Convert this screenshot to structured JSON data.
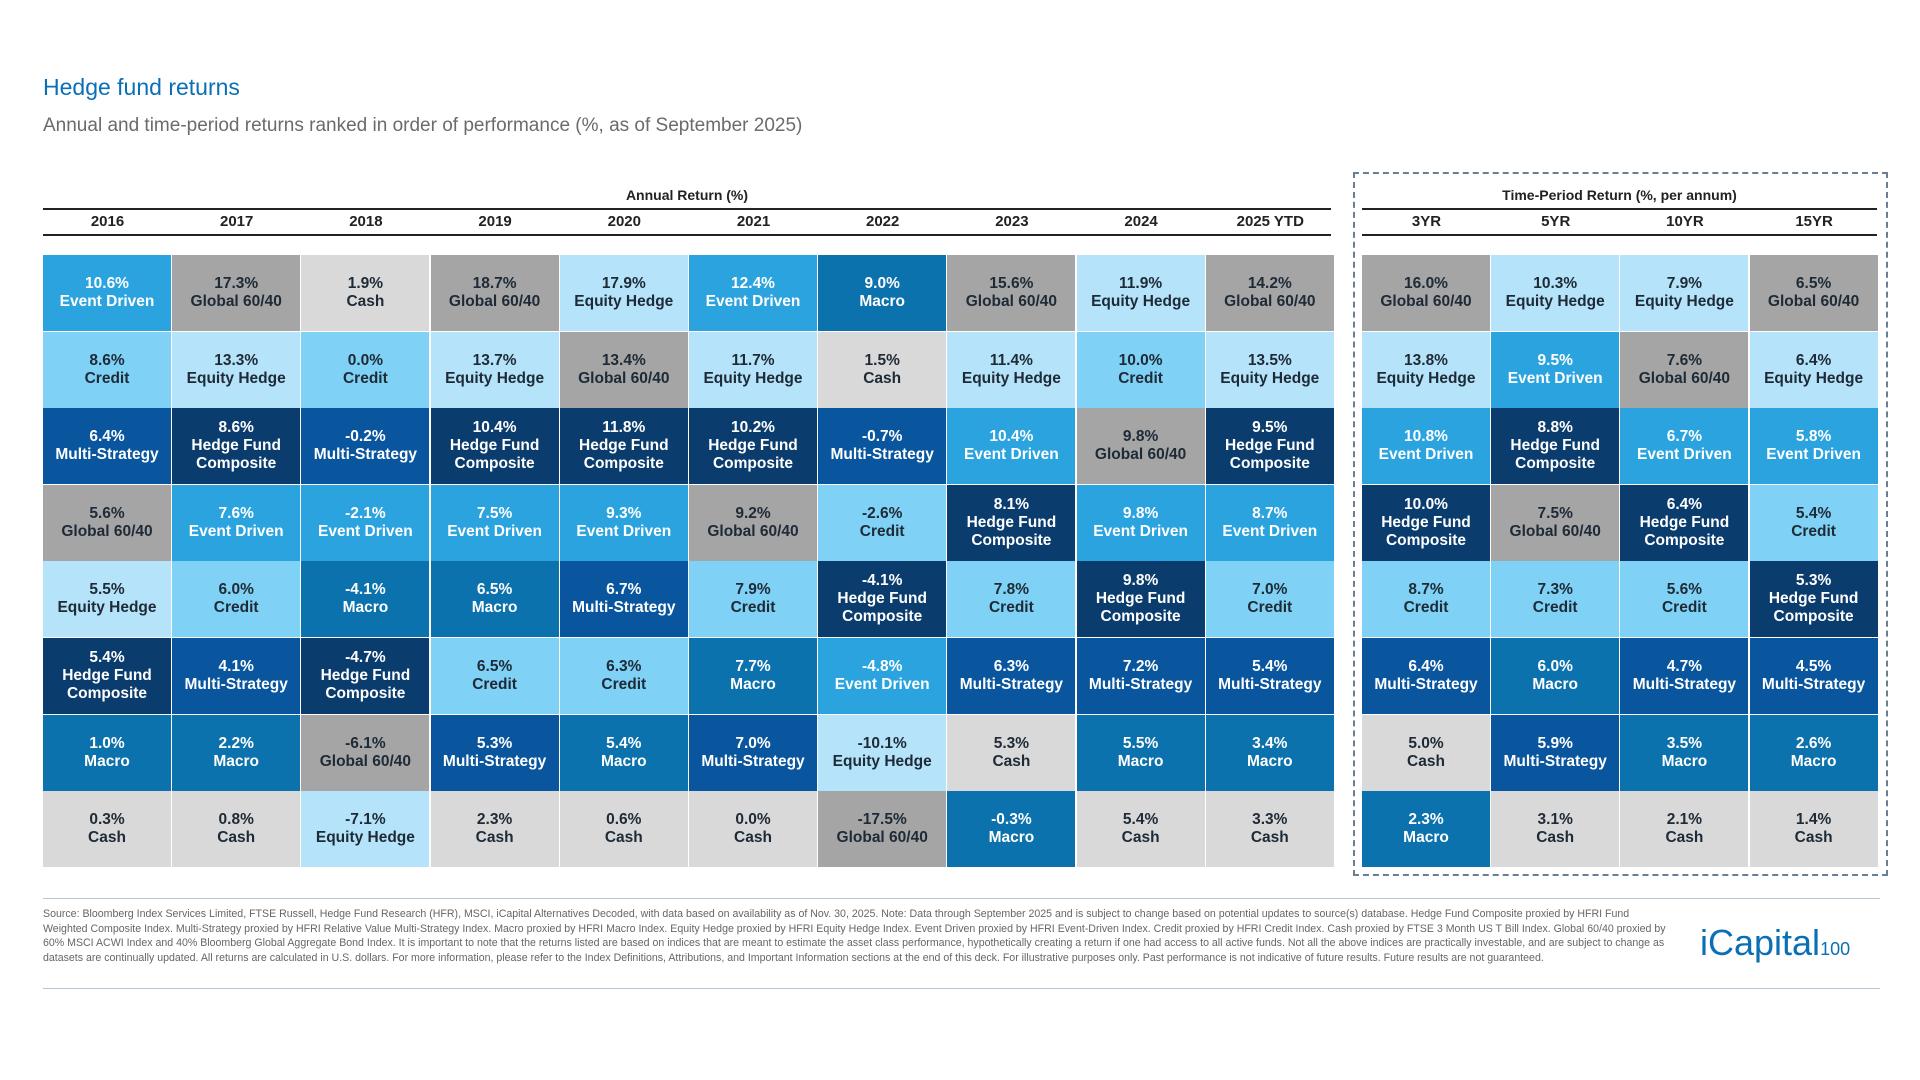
{
  "header": {
    "title": "Hedge fund returns",
    "subtitle": "Annual and time-period returns ranked in order of performance (%, as of September 2025)"
  },
  "colors": {
    "Event Driven": "#2aa3df",
    "Credit": "#7fd1f5",
    "Multi-Strategy": "#0a569e",
    "Global 60/40": "#a5a5a5",
    "Equity Hedge": "#b5e4fa",
    "Hedge Fund Composite": "#0b3c6e",
    "Macro": "#0b72ad",
    "Cash": "#d9d9d9"
  },
  "annual": {
    "title": "Annual Return (%)",
    "columns": [
      {
        "label": "2016",
        "cells": [
          [
            "10.6%",
            "Event Driven"
          ],
          [
            "8.6%",
            "Credit"
          ],
          [
            "6.4%",
            "Multi-Strategy"
          ],
          [
            "5.6%",
            "Global 60/40"
          ],
          [
            "5.5%",
            "Equity Hedge"
          ],
          [
            "5.4%",
            "Hedge Fund Composite"
          ],
          [
            "1.0%",
            "Macro"
          ],
          [
            "0.3%",
            "Cash"
          ]
        ]
      },
      {
        "label": "2017",
        "cells": [
          [
            "17.3%",
            "Global 60/40"
          ],
          [
            "13.3%",
            "Equity Hedge"
          ],
          [
            "8.6%",
            "Hedge Fund Composite"
          ],
          [
            "7.6%",
            "Event Driven"
          ],
          [
            "6.0%",
            "Credit"
          ],
          [
            "4.1%",
            "Multi-Strategy"
          ],
          [
            "2.2%",
            "Macro"
          ],
          [
            "0.8%",
            "Cash"
          ]
        ]
      },
      {
        "label": "2018",
        "cells": [
          [
            "1.9%",
            "Cash"
          ],
          [
            "0.0%",
            "Credit"
          ],
          [
            "-0.2%",
            "Multi-Strategy"
          ],
          [
            "-2.1%",
            "Event Driven"
          ],
          [
            "-4.1%",
            "Macro"
          ],
          [
            "-4.7%",
            "Hedge Fund Composite"
          ],
          [
            "-6.1%",
            "Global 60/40"
          ],
          [
            "-7.1%",
            "Equity Hedge"
          ]
        ]
      },
      {
        "label": "2019",
        "cells": [
          [
            "18.7%",
            "Global 60/40"
          ],
          [
            "13.7%",
            "Equity Hedge"
          ],
          [
            "10.4%",
            "Hedge Fund Composite"
          ],
          [
            "7.5%",
            "Event Driven"
          ],
          [
            "6.5%",
            "Macro"
          ],
          [
            "6.5%",
            "Credit"
          ],
          [
            "5.3%",
            "Multi-Strategy"
          ],
          [
            "2.3%",
            "Cash"
          ]
        ]
      },
      {
        "label": "2020",
        "cells": [
          [
            "17.9%",
            "Equity Hedge"
          ],
          [
            "13.4%",
            "Global 60/40"
          ],
          [
            "11.8%",
            "Hedge Fund Composite"
          ],
          [
            "9.3%",
            "Event Driven"
          ],
          [
            "6.7%",
            "Multi-Strategy"
          ],
          [
            "6.3%",
            "Credit"
          ],
          [
            "5.4%",
            "Macro"
          ],
          [
            "0.6%",
            "Cash"
          ]
        ]
      },
      {
        "label": "2021",
        "cells": [
          [
            "12.4%",
            "Event Driven"
          ],
          [
            "11.7%",
            "Equity Hedge"
          ],
          [
            "10.2%",
            "Hedge Fund Composite"
          ],
          [
            "9.2%",
            "Global 60/40"
          ],
          [
            "7.9%",
            "Credit"
          ],
          [
            "7.7%",
            "Macro"
          ],
          [
            "7.0%",
            "Multi-Strategy"
          ],
          [
            "0.0%",
            "Cash"
          ]
        ]
      },
      {
        "label": "2022",
        "cells": [
          [
            "9.0%",
            "Macro"
          ],
          [
            "1.5%",
            "Cash"
          ],
          [
            "-0.7%",
            "Multi-Strategy"
          ],
          [
            "-2.6%",
            "Credit"
          ],
          [
            "-4.1%",
            "Hedge Fund Composite"
          ],
          [
            "-4.8%",
            "Event Driven"
          ],
          [
            "-10.1%",
            "Equity Hedge"
          ],
          [
            "-17.5%",
            "Global 60/40"
          ]
        ]
      },
      {
        "label": "2023",
        "cells": [
          [
            "15.6%",
            "Global 60/40"
          ],
          [
            "11.4%",
            "Equity Hedge"
          ],
          [
            "10.4%",
            "Event Driven"
          ],
          [
            "8.1%",
            "Hedge Fund Composite"
          ],
          [
            "7.8%",
            "Credit"
          ],
          [
            "6.3%",
            "Multi-Strategy"
          ],
          [
            "5.3%",
            "Cash"
          ],
          [
            "-0.3%",
            "Macro"
          ]
        ]
      },
      {
        "label": "2024",
        "cells": [
          [
            "11.9%",
            "Equity Hedge"
          ],
          [
            "10.0%",
            "Credit"
          ],
          [
            "9.8%",
            "Global 60/40"
          ],
          [
            "9.8%",
            "Event Driven"
          ],
          [
            "9.8%",
            "Hedge Fund Composite"
          ],
          [
            "7.2%",
            "Multi-Strategy"
          ],
          [
            "5.5%",
            "Macro"
          ],
          [
            "5.4%",
            "Cash"
          ]
        ]
      },
      {
        "label": "2025 YTD",
        "cells": [
          [
            "14.2%",
            "Global 60/40"
          ],
          [
            "13.5%",
            "Equity Hedge"
          ],
          [
            "9.5%",
            "Hedge Fund Composite"
          ],
          [
            "8.7%",
            "Event Driven"
          ],
          [
            "7.0%",
            "Credit"
          ],
          [
            "5.4%",
            "Multi-Strategy"
          ],
          [
            "3.4%",
            "Macro"
          ],
          [
            "3.3%",
            "Cash"
          ]
        ]
      }
    ]
  },
  "period": {
    "title": "Time-Period Return (%, per annum)",
    "columns": [
      {
        "label": "3YR",
        "cells": [
          [
            "16.0%",
            "Global 60/40"
          ],
          [
            "13.8%",
            "Equity Hedge"
          ],
          [
            "10.8%",
            "Event Driven"
          ],
          [
            "10.0%",
            "Hedge Fund Composite"
          ],
          [
            "8.7%",
            "Credit"
          ],
          [
            "6.4%",
            "Multi-Strategy"
          ],
          [
            "5.0%",
            "Cash"
          ],
          [
            "2.3%",
            "Macro"
          ]
        ]
      },
      {
        "label": "5YR",
        "cells": [
          [
            "10.3%",
            "Equity Hedge"
          ],
          [
            "9.5%",
            "Event Driven"
          ],
          [
            "8.8%",
            "Hedge Fund Composite"
          ],
          [
            "7.5%",
            "Global 60/40"
          ],
          [
            "7.3%",
            "Credit"
          ],
          [
            "6.0%",
            "Macro"
          ],
          [
            "5.9%",
            "Multi-Strategy"
          ],
          [
            "3.1%",
            "Cash"
          ]
        ]
      },
      {
        "label": "10YR",
        "cells": [
          [
            "7.9%",
            "Equity Hedge"
          ],
          [
            "7.6%",
            "Global 60/40"
          ],
          [
            "6.7%",
            "Event Driven"
          ],
          [
            "6.4%",
            "Hedge Fund Composite"
          ],
          [
            "5.6%",
            "Credit"
          ],
          [
            "4.7%",
            "Multi-Strategy"
          ],
          [
            "3.5%",
            "Macro"
          ],
          [
            "2.1%",
            "Cash"
          ]
        ]
      },
      {
        "label": "15YR",
        "cells": [
          [
            "6.5%",
            "Global 60/40"
          ],
          [
            "6.4%",
            "Equity Hedge"
          ],
          [
            "5.8%",
            "Event Driven"
          ],
          [
            "5.4%",
            "Credit"
          ],
          [
            "5.3%",
            "Hedge Fund Composite"
          ],
          [
            "4.5%",
            "Multi-Strategy"
          ],
          [
            "2.6%",
            "Macro"
          ],
          [
            "1.4%",
            "Cash"
          ]
        ]
      }
    ]
  },
  "footer": {
    "source": "Source: Bloomberg Index Services Limited, FTSE Russell, Hedge Fund Research (HFR), MSCI, iCapital Alternatives Decoded, with data based on availability as of Nov. 30, 2025. Note: Data through September 2025 and is subject to change based on potential updates to source(s) database. Hedge Fund Composite proxied by HFRI Fund Weighted Composite Index. Multi-Strategy proxied by HFRI Relative Value Multi-Strategy Index. Macro proxied by HFRI Macro Index. Equity Hedge proxied by HFRI Equity Hedge Index. Event Driven proxied by HFRI Event-Driven Index. Credit proxied by HFRI Credit Index. Cash proxied by FTSE 3 Month US T Bill Index. Global 60/40 proxied by 60% MSCI ACWI Index and 40% Bloomberg Global Aggregate Bond Index. It is important to note that the returns listed are based on indices that are meant to estimate the asset class performance, hypothetically creating a return if one had access to all active funds. Not all the above indices are practically investable, and are subject to change as datasets are continually updated. All returns are calculated in U.S. dollars. For more information, please refer to the Index Definitions, Attributions, and Important Information sections at the end of this deck. For illustrative purposes only. Past performance is not indicative of future results. Future results are not guaranteed.",
    "logo": "iCapital",
    "logo_suffix": "100"
  }
}
